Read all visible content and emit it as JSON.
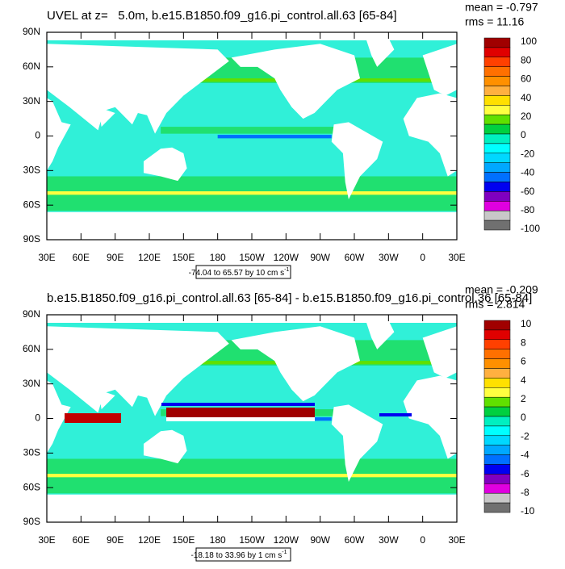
{
  "panels": [
    {
      "title": "UVEL at z=   5.0m, b.e15.B1850.f09_g16.pi_control.all.63 [65-84]",
      "mean": "mean = -0.797",
      "rms": "rms = 11.16",
      "range": "-74.04 to 65.57 by 10 cm s",
      "range_exp": "-1",
      "colorbar_labels": [
        "100",
        "80",
        "60",
        "40",
        "20",
        "0",
        "-20",
        "-40",
        "-60",
        "-80",
        "-100"
      ]
    },
    {
      "title": "b.e15.B1850.f09_g16.pi_control.all.63 [65-84] - b.e15.B1850.f09_g16.pi_control.36 [65-84]",
      "mean": "mean = -0.209",
      "rms": "rms = 2.814",
      "range": "-18.18 to 33.96 by 1 cm s",
      "range_exp": "-1",
      "colorbar_labels": [
        "10",
        "8",
        "6",
        "4",
        "2",
        "0",
        "-2",
        "-4",
        "-6",
        "-8",
        "-10"
      ]
    }
  ],
  "lat_labels": [
    "90N",
    "60N",
    "30N",
    "0",
    "30S",
    "60S",
    "90S"
  ],
  "lon_labels": [
    "30E",
    "60E",
    "90E",
    "120E",
    "150E",
    "180",
    "150W",
    "120W",
    "90W",
    "60W",
    "30W",
    "0",
    "30E"
  ],
  "colors": [
    "#a00000",
    "#e00000",
    "#ff4000",
    "#ff7000",
    "#ff9000",
    "#ffb040",
    "#ffe000",
    "#ffff40",
    "#60e000",
    "#00d040",
    "#00f0c0",
    "#00ffff",
    "#00d8ff",
    "#00a8ff",
    "#0070ff",
    "#0000f0",
    "#8000c0",
    "#e000e0",
    "#c8c8c8",
    "#707070"
  ]
}
